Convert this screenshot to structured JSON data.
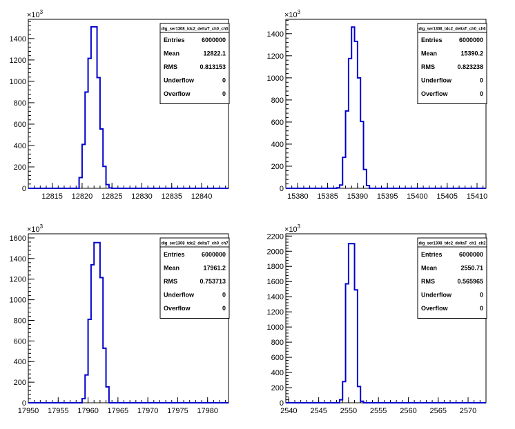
{
  "chart_data": [
    {
      "type": "bar",
      "histogram_name": "dig_ser1308_tdc2_deltaT_ch0_ch5",
      "ylabel_multiplier": "×10³",
      "xlim": [
        12811,
        12844.5
      ],
      "ylim": [
        0,
        1580
      ],
      "x_ticks": [
        12815,
        12820,
        12825,
        12830,
        12835,
        12840
      ],
      "y_ticks": [
        0,
        200,
        400,
        600,
        800,
        1000,
        1200,
        1400
      ],
      "bin_width": 0.5,
      "bin_edges": [
        12811,
        12819.5,
        12820,
        12820.5,
        12821,
        12821.5,
        12822,
        12822.5,
        12823,
        12823.5,
        12824,
        12824.5,
        12825,
        12844.5
      ],
      "values": [
        0,
        100,
        410,
        900,
        1215,
        1510,
        1510,
        1035,
        555,
        205,
        35,
        3,
        0
      ],
      "stats": [
        {
          "label": "Entries",
          "value": "6000000"
        },
        {
          "label": "Mean",
          "value": "12822.1"
        },
        {
          "label": "RMS",
          "value": "0.813153"
        },
        {
          "label": "Underflow",
          "value": "0"
        },
        {
          "label": "Overflow",
          "value": "0"
        }
      ],
      "color": "#0000cc"
    },
    {
      "type": "bar",
      "histogram_name": "dig_ser1308_tdc2_deltaT_ch0_ch6",
      "ylabel_multiplier": "×10³",
      "xlim": [
        15378,
        15411.5
      ],
      "ylim": [
        0,
        1530
      ],
      "x_ticks": [
        15380,
        15385,
        15390,
        15395,
        15400,
        15405,
        15410
      ],
      "y_ticks": [
        0,
        200,
        400,
        600,
        800,
        1000,
        1200,
        1400
      ],
      "bin_width": 0.5,
      "bin_edges": [
        15378,
        15386.5,
        15387,
        15387.5,
        15388,
        15388.5,
        15389,
        15389.5,
        15390,
        15390.5,
        15391,
        15391.5,
        15392,
        15392.5,
        15411.5
      ],
      "values": [
        0,
        5,
        30,
        280,
        700,
        1175,
        1460,
        1330,
        1000,
        605,
        170,
        25,
        0,
        0
      ],
      "stats": [
        {
          "label": "Entries",
          "value": "6000000"
        },
        {
          "label": "Mean",
          "value": "15390.2"
        },
        {
          "label": "RMS",
          "value": "0.823238"
        },
        {
          "label": "Underflow",
          "value": "0"
        },
        {
          "label": "Overflow",
          "value": "0"
        }
      ],
      "color": "#0000cc"
    },
    {
      "type": "bar",
      "histogram_name": "dig_ser1308_tdc2_deltaT_ch0_ch7",
      "ylabel_multiplier": "×10³",
      "xlim": [
        17950,
        17983.5
      ],
      "ylim": [
        0,
        1640
      ],
      "x_ticks": [
        17950,
        17955,
        17960,
        17965,
        17970,
        17975,
        17980
      ],
      "y_ticks": [
        0,
        200,
        400,
        600,
        800,
        1000,
        1200,
        1400,
        1600
      ],
      "bin_width": 0.5,
      "bin_edges": [
        17950,
        17959,
        17959.5,
        17960,
        17960.5,
        17961,
        17961.5,
        17962,
        17962.5,
        17963,
        17963.5,
        17983.5
      ],
      "values": [
        0,
        40,
        270,
        810,
        1340,
        1555,
        1555,
        1215,
        530,
        155,
        0
      ],
      "stats": [
        {
          "label": "Entries",
          "value": "6000000"
        },
        {
          "label": "Mean",
          "value": "17961.2"
        },
        {
          "label": "RMS",
          "value": "0.753713"
        },
        {
          "label": "Underflow",
          "value": "0"
        },
        {
          "label": "Overflow",
          "value": "0"
        }
      ],
      "color": "#0000cc"
    },
    {
      "type": "bar",
      "histogram_name": "dig_ser1308_tdc2_deltaT_ch1_ch2",
      "ylabel_multiplier": "×10³",
      "xlim": [
        2539.5,
        2573
      ],
      "ylim": [
        0,
        2230
      ],
      "x_ticks": [
        2540,
        2545,
        2550,
        2555,
        2560,
        2565,
        2570
      ],
      "y_ticks": [
        0,
        200,
        400,
        600,
        800,
        1000,
        1200,
        1400,
        1600,
        1800,
        2000,
        2200
      ],
      "bin_width": 0.5,
      "bin_edges": [
        2539.5,
        2548.5,
        2549,
        2549.5,
        2550,
        2550.5,
        2551,
        2551.5,
        2552,
        2552.5,
        2573
      ],
      "values": [
        0,
        40,
        280,
        1570,
        2100,
        2100,
        1490,
        215,
        20,
        0
      ],
      "stats": [
        {
          "label": "Entries",
          "value": "6000000"
        },
        {
          "label": "Mean",
          "value": "2550.71"
        },
        {
          "label": "RMS",
          "value": "0.565965"
        },
        {
          "label": "Underflow",
          "value": "0"
        },
        {
          "label": "Overflow",
          "value": "0"
        }
      ],
      "color": "#0000cc"
    }
  ]
}
